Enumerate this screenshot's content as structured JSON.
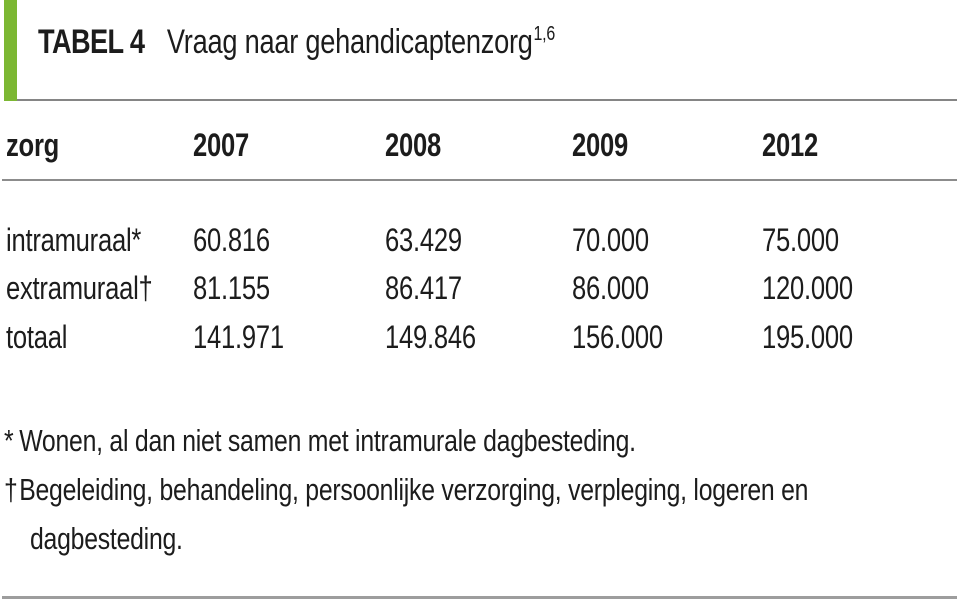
{
  "title": {
    "label": "TABEL 4",
    "caption": "Vraag naar gehandicaptenzorg",
    "superscript": "1,6"
  },
  "table": {
    "columns": [
      "zorg",
      "2007",
      "2008",
      "2009",
      "2012"
    ],
    "rows": [
      {
        "label": "intramuraal*",
        "values": [
          "60.816",
          "63.429",
          "70.000",
          "75.000"
        ]
      },
      {
        "label": "extramuraal†",
        "values": [
          "81.155",
          "86.417",
          "86.000",
          "120.000"
        ]
      },
      {
        "label": "totaal",
        "values": [
          "141.971",
          "149.846",
          "156.000",
          "195.000"
        ]
      }
    ]
  },
  "footnotes": [
    {
      "marker": "*",
      "lines": [
        "Wonen, al dan niet samen met intramurale dagbesteding."
      ]
    },
    {
      "marker": "†",
      "lines": [
        "Begeleiding, behandeling, persoonlijke verzorging, verpleging, logeren en",
        "dagbesteding."
      ]
    }
  ],
  "colors": {
    "accent_green": "#7cb733",
    "rule_gray": "#8c8c8c",
    "text": "#1c1c1c"
  }
}
